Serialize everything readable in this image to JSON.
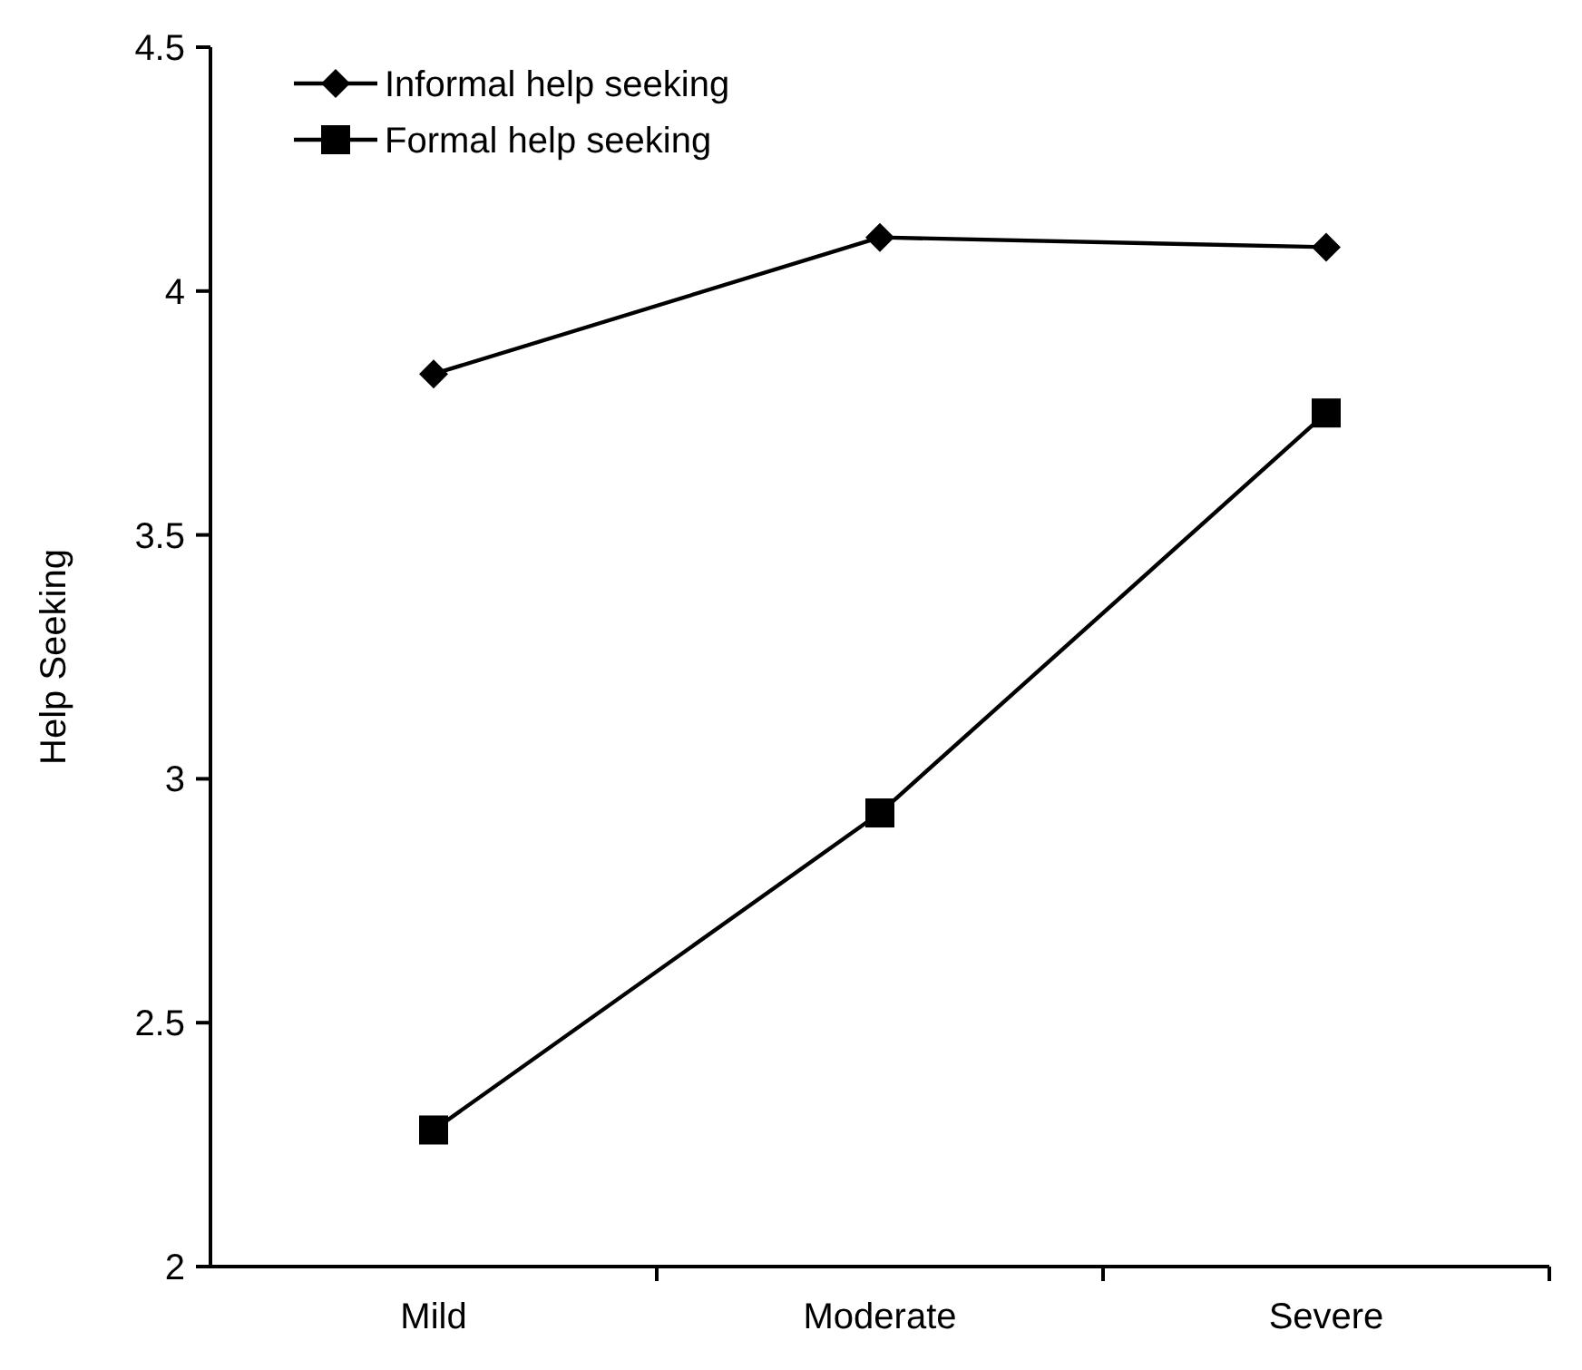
{
  "chart_data": {
    "type": "line",
    "ylabel": "Help Seeking",
    "categories": [
      "Mild",
      "Moderate",
      "Severe"
    ],
    "series": [
      {
        "name": "Informal help seeking",
        "color": "#000000",
        "marker": "diamond",
        "values": [
          3.83,
          4.11,
          4.09
        ]
      },
      {
        "name": "Formal help seeking",
        "color": "#000000",
        "marker": "square",
        "values": [
          2.28,
          2.93,
          3.75
        ]
      }
    ],
    "ylim": [
      2,
      4.5
    ],
    "yticks": [
      2,
      2.5,
      3,
      3.5,
      4,
      4.5
    ],
    "grid": false,
    "legend": "top left",
    "line_style": "solid"
  }
}
